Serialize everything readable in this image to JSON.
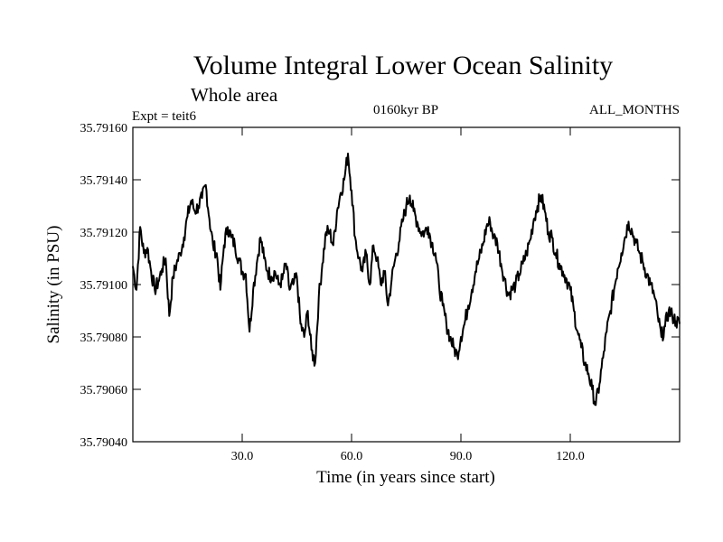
{
  "chart_data": {
    "type": "line",
    "title": "Volume Integral Lower Ocean Salinity",
    "subtitle": "Whole area",
    "left_label": "Expt = teit6",
    "center_label": "0160kyr BP",
    "right_label": "ALL_MONTHS",
    "xlabel": "Time (in years since start)",
    "ylabel": "Salinity (in PSU)",
    "xlim": [
      0,
      150
    ],
    "ylim": [
      35.7904,
      35.7916
    ],
    "xticks": [
      30,
      60,
      90,
      120
    ],
    "xtick_labels": [
      "30.0",
      "60.0",
      "90.0",
      "120.0"
    ],
    "yticks": [
      35.7904,
      35.7906,
      35.7908,
      35.791,
      35.7912,
      35.7914,
      35.7916
    ],
    "ytick_labels": [
      "35.79040",
      "35.79060",
      "35.79080",
      "35.79100",
      "35.79120",
      "35.79140",
      "35.79160"
    ],
    "series": [
      {
        "name": "salinity",
        "x": [
          0,
          1,
          2,
          3,
          4,
          5,
          6,
          7,
          8,
          9,
          10,
          11,
          12,
          13,
          14,
          15,
          16,
          17,
          18,
          19,
          20,
          21,
          22,
          23,
          24,
          25,
          26,
          27,
          28,
          29,
          30,
          31,
          32,
          33,
          34,
          35,
          36,
          37,
          38,
          39,
          40,
          41,
          42,
          43,
          44,
          45,
          46,
          47,
          48,
          49,
          50,
          51,
          52,
          53,
          54,
          55,
          56,
          57,
          58,
          59,
          60,
          61,
          62,
          63,
          64,
          65,
          66,
          67,
          68,
          69,
          70,
          71,
          72,
          73,
          74,
          75,
          76,
          77,
          78,
          79,
          80,
          81,
          82,
          83,
          84,
          85,
          86,
          87,
          88,
          89,
          90,
          91,
          92,
          93,
          94,
          95,
          96,
          97,
          98,
          99,
          100,
          101,
          102,
          103,
          104,
          105,
          106,
          107,
          108,
          109,
          110,
          111,
          112,
          113,
          114,
          115,
          116,
          117,
          118,
          119,
          120,
          121,
          122,
          123,
          124,
          125,
          126,
          127,
          128,
          129,
          130,
          131,
          132,
          133,
          134,
          135,
          136,
          137,
          138,
          139,
          140,
          141,
          142,
          143,
          144,
          145,
          146,
          147,
          148,
          149,
          150
        ],
        "values": [
          35.79107,
          35.79098,
          35.79122,
          35.79112,
          35.79114,
          35.79105,
          35.79098,
          35.79101,
          35.79106,
          35.7911,
          35.79088,
          35.79103,
          35.79108,
          35.79112,
          35.79118,
          35.79126,
          35.79132,
          35.79128,
          35.7913,
          35.79133,
          35.79138,
          35.79125,
          35.79115,
          35.79112,
          35.79098,
          35.79115,
          35.79122,
          35.79118,
          35.79115,
          35.7911,
          35.79105,
          35.79104,
          35.79082,
          35.79098,
          35.79108,
          35.79118,
          35.7911,
          35.79105,
          35.79103,
          35.79105,
          35.791,
          35.79102,
          35.79108,
          35.79098,
          35.791,
          35.79103,
          35.79085,
          35.7908,
          35.7909,
          35.79075,
          35.7907,
          35.79095,
          35.79108,
          35.7912,
          35.7912,
          35.79115,
          35.79128,
          35.79135,
          35.7914,
          35.7915,
          35.79136,
          35.79118,
          35.7911,
          35.79105,
          35.79112,
          35.791,
          35.79115,
          35.7911,
          35.791,
          35.79105,
          35.79092,
          35.79102,
          35.7911,
          35.79116,
          35.79124,
          35.7913,
          35.79134,
          35.79128,
          35.79124,
          35.7912,
          35.7912,
          35.79122,
          35.79116,
          35.79112,
          35.791,
          35.79092,
          35.79085,
          35.7908,
          35.79076,
          35.79073,
          35.7908,
          35.79085,
          35.79092,
          35.79098,
          35.79105,
          35.7911,
          35.79115,
          35.79122,
          35.79124,
          35.79118,
          35.79116,
          35.79108,
          35.79102,
          35.79096,
          35.79098,
          35.791,
          35.79104,
          35.79108,
          35.79112,
          35.79117,
          35.79125,
          35.7913,
          35.79134,
          35.79128,
          35.7912,
          35.79118,
          35.79112,
          35.79108,
          35.79105,
          35.79102,
          35.79098,
          35.7909,
          35.79082,
          35.79076,
          35.7907,
          35.79066,
          35.7906,
          35.79054,
          35.79062,
          35.79072,
          35.79082,
          35.7909,
          35.79098,
          35.79106,
          35.79112,
          35.79118,
          35.79124,
          35.7912,
          35.79116,
          35.79112,
          35.79108,
          35.79104,
          35.791,
          35.79096,
          35.79088,
          35.7908,
          35.79084,
          35.7909,
          35.79088,
          35.79086,
          35.79085
        ]
      }
    ],
    "grid": false,
    "legend": "none"
  }
}
